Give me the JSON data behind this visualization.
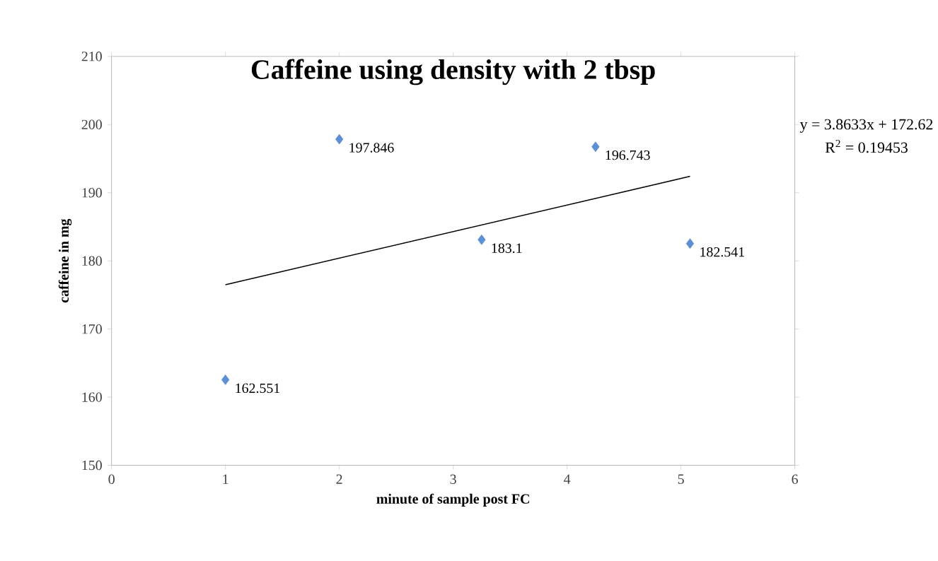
{
  "chart_data": {
    "type": "scatter",
    "title": "Caffeine using density with 2 tbsp",
    "xlabel": "minute of sample post FC",
    "ylabel": "caffeine in mg",
    "xlim": [
      0,
      6
    ],
    "xticks": [
      0,
      1,
      2,
      3,
      4,
      5,
      6
    ],
    "ylim": [
      150,
      210
    ],
    "yticks": [
      150,
      160,
      170,
      180,
      190,
      200,
      210
    ],
    "grid": false,
    "marker": "diamond",
    "series": [
      {
        "color": "#5b8fd6",
        "x": [
          1,
          2,
          3.25,
          4.25,
          5.08
        ],
        "values": [
          162.551,
          197.846,
          183.1,
          196.743,
          182.541
        ],
        "value_labels": [
          "162.551",
          "197.846",
          "183.1",
          "196.743",
          "182.541"
        ]
      },
      {
        "type": "line",
        "color": "#000000",
        "marker": "none",
        "x": [
          1,
          5.08
        ],
        "values": [
          176.5,
          192.4
        ]
      }
    ],
    "annotations": [
      "y = 3.8633x + 172.62",
      "R$^{2}$ = 0.19453"
    ]
  }
}
